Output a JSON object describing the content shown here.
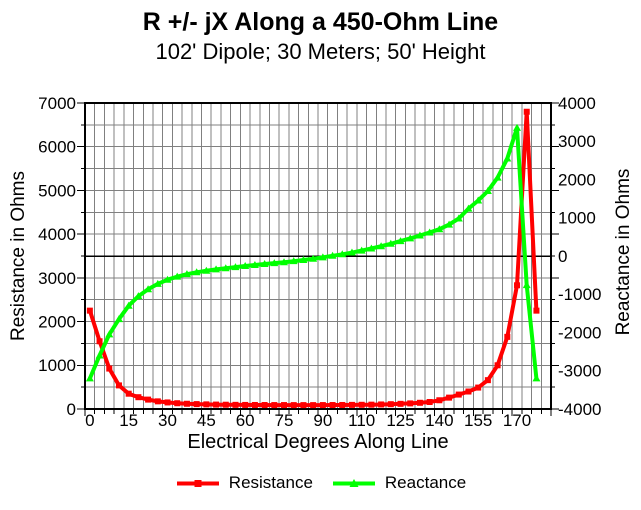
{
  "chart_data": {
    "type": "line",
    "title": "R +/- jX Along a 450-Ohm Line",
    "subtitle": "102' Dipole; 30 Meters; 50' Height",
    "xlabel": "Electrical Degrees Along Line",
    "ylabel_left": "Resistance in Ohms",
    "ylabel_right": "Reactance in Ohms",
    "background": "#ffffff",
    "grid_color": "#808080",
    "axis_color": "#000000",
    "grid_on": true,
    "x_axis": {
      "slots": 48,
      "tick_labels": [
        "0",
        "15",
        "30",
        "45",
        "60",
        "75",
        "90",
        "110",
        "125",
        "140",
        "155",
        "170"
      ],
      "label_every_slots": 4
    },
    "left_axis": {
      "min": 0,
      "max": 7000,
      "major": 1000,
      "minor": 500,
      "tick_labels": [
        "0",
        "1000",
        "2000",
        "3000",
        "4000",
        "5000",
        "6000",
        "7000"
      ]
    },
    "right_axis": {
      "min": -4000,
      "max": 4000,
      "major": 1000,
      "minor": 500,
      "zero_line": 0,
      "tick_labels": [
        "-4000",
        "-3000",
        "-2000",
        "-1000",
        "0",
        "1000",
        "2000",
        "3000",
        "4000"
      ]
    },
    "legend_position": "bottom",
    "series": [
      {
        "name": "Resistance",
        "axis": "left",
        "color": "#ff0000",
        "marker": "square",
        "values": [
          2250,
          1550,
          925,
          540,
          350,
          270,
          215,
          175,
          150,
          132,
          120,
          112,
          106,
          101,
          98,
          95,
          93,
          92,
          91,
          90,
          90,
          89,
          89,
          89,
          90,
          91,
          92,
          94,
          96,
          99,
          104,
          110,
          118,
          128,
          142,
          160,
          200,
          260,
          330,
          400,
          490,
          660,
          1000,
          1650,
          2830,
          6800,
          2250
        ]
      },
      {
        "name": "Reactance",
        "axis": "right",
        "color": "#00ff00",
        "marker": "triangle",
        "values": [
          -3200,
          -2600,
          -2050,
          -1650,
          -1300,
          -1050,
          -870,
          -730,
          -620,
          -540,
          -475,
          -425,
          -385,
          -350,
          -320,
          -290,
          -262,
          -236,
          -210,
          -186,
          -162,
          -135,
          -105,
          -72,
          -35,
          5,
          45,
          90,
          140,
          195,
          255,
          320,
          390,
          460,
          535,
          615,
          700,
          820,
          980,
          1240,
          1450,
          1700,
          2050,
          2550,
          3350,
          -760,
          -3200
        ]
      }
    ]
  }
}
